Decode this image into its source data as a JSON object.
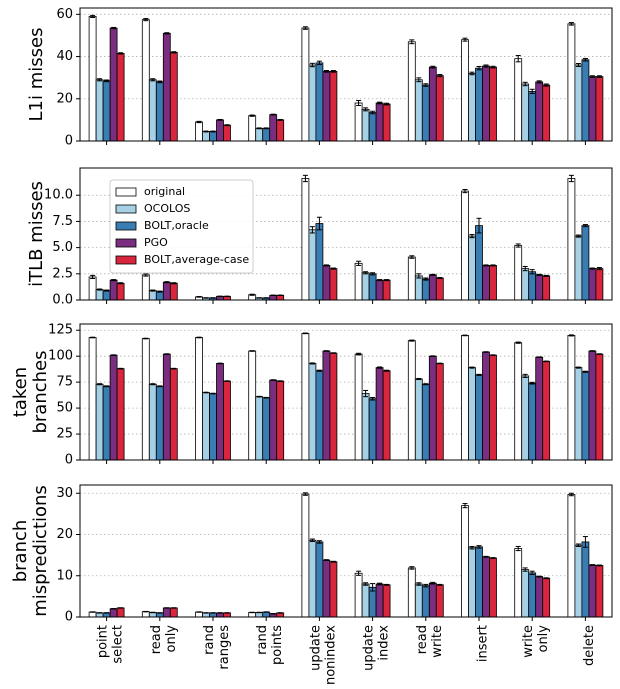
{
  "chart_data": [
    {
      "type": "bar",
      "ylabel": [
        "L1i misses"
      ],
      "ylim": [
        0,
        63
      ],
      "yticks": [
        0,
        20,
        40,
        60
      ],
      "grid": true,
      "series": [
        {
          "color": "#ffffff",
          "values": [
            59,
            57.5,
            9,
            12,
            53.5,
            18,
            47,
            48,
            39,
            55.5
          ],
          "errors": [
            0.5,
            0.5,
            0.3,
            0.3,
            0.6,
            1.2,
            0.9,
            0.7,
            1.5,
            0.6
          ]
        },
        {
          "color": "#a6d0e4",
          "values": [
            29,
            29,
            4.5,
            6,
            36,
            15,
            29,
            32,
            27,
            36
          ],
          "errors": [
            0.5,
            0.5,
            0.2,
            0.2,
            0.8,
            0.7,
            0.9,
            0.6,
            0.8,
            0.7
          ]
        },
        {
          "color": "#3a7db3",
          "values": [
            28.5,
            28,
            4.5,
            6,
            37,
            13.5,
            26.5,
            34.5,
            23.5,
            38.5
          ],
          "errors": [
            0.4,
            0.4,
            0.2,
            0.2,
            0.8,
            0.6,
            0.6,
            0.8,
            1.0,
            0.6
          ]
        },
        {
          "color": "#7b2d80",
          "values": [
            53.5,
            51,
            10,
            12.5,
            33,
            18,
            35,
            35.5,
            28,
            30.5
          ],
          "errors": [
            0.3,
            0.3,
            0.2,
            0.2,
            0.4,
            0.4,
            0.4,
            0.5,
            0.5,
            0.4
          ]
        },
        {
          "color": "#d7263d",
          "values": [
            41.5,
            42,
            7.5,
            10,
            33,
            17.5,
            31,
            35,
            26.5,
            30.5
          ],
          "errors": [
            0.3,
            0.3,
            0.2,
            0.2,
            0.4,
            0.4,
            0.5,
            0.4,
            0.5,
            0.4
          ]
        }
      ]
    },
    {
      "type": "bar",
      "ylabel": [
        "iTLB misses"
      ],
      "ylim": [
        0,
        12.6
      ],
      "yticks": [
        {
          "value": 0,
          "label": "0.0"
        },
        {
          "value": 2.5,
          "label": "2.5"
        },
        {
          "value": 5,
          "label": "5.0"
        },
        {
          "value": 7.5,
          "label": "7.5"
        },
        {
          "value": 10,
          "label": "10.0"
        }
      ],
      "grid": true,
      "legend": "upper left",
      "series": [
        {
          "name": "original",
          "color": "#ffffff",
          "values": [
            2.2,
            2.4,
            0.3,
            0.5,
            11.6,
            3.5,
            4.1,
            10.4,
            5.2,
            11.6
          ],
          "errors": [
            0.15,
            0.12,
            0.03,
            0.05,
            0.3,
            0.2,
            0.12,
            0.15,
            0.15,
            0.3
          ]
        },
        {
          "name": "OCOLOS",
          "color": "#a6d0e4",
          "values": [
            1.0,
            0.9,
            0.2,
            0.2,
            6.7,
            2.6,
            2.3,
            6.1,
            3.0,
            6.1
          ],
          "errors": [
            0.05,
            0.05,
            0.02,
            0.02,
            0.3,
            0.1,
            0.2,
            0.15,
            0.2,
            0.1
          ]
        },
        {
          "name": "BOLT,oracle",
          "color": "#3a7db3",
          "values": [
            0.9,
            0.8,
            0.2,
            0.2,
            7.3,
            2.5,
            2.0,
            7.1,
            2.7,
            7.1
          ],
          "errors": [
            0.05,
            0.05,
            0.02,
            0.02,
            0.6,
            0.1,
            0.1,
            0.7,
            0.2,
            0.1
          ]
        },
        {
          "name": "PGO",
          "color": "#7b2d80",
          "values": [
            1.9,
            1.7,
            0.35,
            0.45,
            3.3,
            1.9,
            2.4,
            3.3,
            2.4,
            3.0
          ],
          "errors": [
            0.05,
            0.05,
            0.02,
            0.02,
            0.05,
            0.05,
            0.05,
            0.05,
            0.05,
            0.05
          ]
        },
        {
          "name": "BOLT,average-case",
          "color": "#d7263d",
          "values": [
            1.6,
            1.6,
            0.35,
            0.45,
            3.0,
            1.9,
            2.1,
            3.3,
            2.3,
            3.0
          ],
          "errors": [
            0.05,
            0.05,
            0.02,
            0.02,
            0.05,
            0.05,
            0.05,
            0.05,
            0.05,
            0.1
          ]
        }
      ]
    },
    {
      "type": "bar",
      "ylabel": [
        "taken",
        "branches"
      ],
      "ylim": [
        0,
        131
      ],
      "yticks": [
        0,
        25,
        50,
        75,
        100,
        125
      ],
      "grid": true,
      "series": [
        {
          "color": "#ffffff",
          "values": [
            118,
            117,
            118,
            105,
            122,
            102,
            115,
            120,
            113,
            120
          ],
          "errors": [
            0.3,
            0.3,
            0.3,
            0.3,
            0.3,
            0.8,
            0.5,
            0.3,
            0.6,
            0.5
          ]
        },
        {
          "color": "#a6d0e4",
          "values": [
            73,
            73,
            65,
            61,
            93,
            64,
            78,
            89,
            81,
            89
          ],
          "errors": [
            0.5,
            0.5,
            0.3,
            0.3,
            0.5,
            3.0,
            0.5,
            0.5,
            1.5,
            0.5
          ]
        },
        {
          "color": "#3a7db3",
          "values": [
            71,
            71,
            64,
            60,
            86,
            59,
            73,
            82,
            74,
            85
          ],
          "errors": [
            0.4,
            0.4,
            0.3,
            0.3,
            0.5,
            1.2,
            0.5,
            0.5,
            0.8,
            0.5
          ]
        },
        {
          "color": "#7b2d80",
          "values": [
            101,
            102,
            93,
            77,
            105,
            89,
            100,
            104,
            99,
            105
          ],
          "errors": [
            0.3,
            0.3,
            0.3,
            0.3,
            0.3,
            0.6,
            0.3,
            0.3,
            0.3,
            0.3
          ]
        },
        {
          "color": "#d7263d",
          "values": [
            88,
            88,
            76,
            76,
            103,
            86,
            93,
            101,
            95,
            102
          ],
          "errors": [
            0.3,
            0.3,
            0.3,
            0.3,
            0.3,
            0.5,
            0.3,
            0.3,
            0.3,
            0.3
          ]
        }
      ]
    },
    {
      "type": "bar",
      "ylabel": [
        "branch",
        "mispredictions"
      ],
      "ylim": [
        0,
        32
      ],
      "yticks": [
        0,
        10,
        20,
        30
      ],
      "grid": true,
      "categories": [
        [
          "point",
          "select"
        ],
        [
          "read",
          "only"
        ],
        [
          "rand",
          "ranges"
        ],
        [
          "rand",
          "points"
        ],
        [
          "update",
          "nonindex"
        ],
        [
          "update",
          "index"
        ],
        [
          "read",
          "write"
        ],
        [
          "insert"
        ],
        [
          "write",
          "only"
        ],
        [
          "delete"
        ]
      ],
      "series": [
        {
          "color": "#ffffff",
          "values": [
            1.2,
            1.3,
            1.2,
            1.1,
            29.8,
            10.6,
            11.9,
            27,
            16.6,
            29.7
          ],
          "errors": [
            0.05,
            0.05,
            0.05,
            0.05,
            0.3,
            0.5,
            0.3,
            0.5,
            0.5,
            0.3
          ]
        },
        {
          "color": "#a6d0e4",
          "values": [
            1.0,
            1.1,
            1.0,
            1.1,
            18.6,
            8.0,
            8.0,
            16.8,
            11.5,
            17.4
          ],
          "errors": [
            0.05,
            0.05,
            0.05,
            0.05,
            0.3,
            0.3,
            0.3,
            0.3,
            0.4,
            0.3
          ]
        },
        {
          "color": "#3a7db3",
          "values": [
            1.0,
            1.0,
            1.0,
            1.2,
            18.2,
            7.2,
            7.6,
            17.0,
            10.7,
            18.2
          ],
          "errors": [
            0.05,
            0.05,
            0.05,
            0.05,
            0.3,
            0.9,
            0.3,
            0.3,
            0.4,
            1.3
          ]
        },
        {
          "color": "#7b2d80",
          "values": [
            2.0,
            2.2,
            1.0,
            0.8,
            13.8,
            8.0,
            8.2,
            14.6,
            9.8,
            12.6
          ],
          "errors": [
            0.05,
            0.05,
            0.05,
            0.05,
            0.1,
            0.2,
            0.2,
            0.1,
            0.1,
            0.1
          ]
        },
        {
          "color": "#d7263d",
          "values": [
            2.2,
            2.2,
            1.0,
            1.0,
            13.4,
            7.8,
            7.8,
            14.3,
            9.4,
            12.5
          ],
          "errors": [
            0.05,
            0.05,
            0.05,
            0.05,
            0.1,
            0.1,
            0.1,
            0.1,
            0.1,
            0.1
          ]
        }
      ]
    }
  ]
}
